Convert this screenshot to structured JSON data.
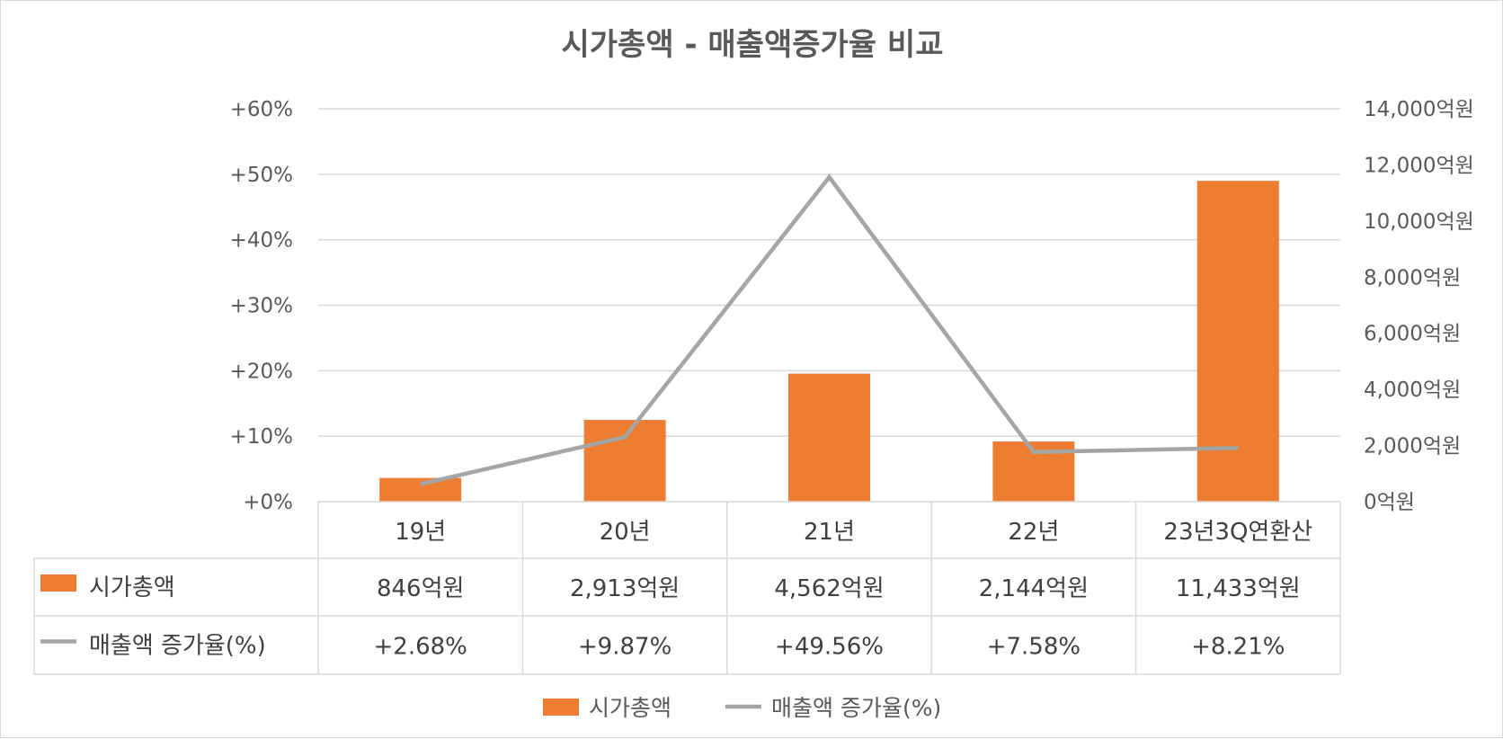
{
  "chart_data": {
    "type": "bar",
    "title": "시가총액 - 매출액증가율 비교",
    "categories": [
      "19년",
      "20년",
      "21년",
      "22년",
      "23년3Q연환산"
    ],
    "series": [
      {
        "name": "시가총액",
        "type": "bar",
        "axis": "right",
        "unit": "억원",
        "values": [
          846,
          2913,
          4562,
          2144,
          11433
        ],
        "value_labels": [
          "846억원",
          "2,913억원",
          "4,562억원",
          "2,144억원",
          "11,433억원"
        ],
        "color": "#ED7D31"
      },
      {
        "name": "매출액 증가율(%)",
        "type": "line",
        "axis": "left",
        "unit": "%",
        "values": [
          2.68,
          9.87,
          49.56,
          7.58,
          8.21
        ],
        "value_labels": [
          "+2.68%",
          "+9.87%",
          "+49.56%",
          "+7.58%",
          "+8.21%"
        ],
        "color": "#A5A5A5"
      }
    ],
    "y_left": {
      "range": [
        0,
        60
      ],
      "ticks": [
        "+0%",
        "+10%",
        "+20%",
        "+30%",
        "+40%",
        "+50%",
        "+60%"
      ]
    },
    "y_right": {
      "range": [
        0,
        14000
      ],
      "ticks": [
        "0억원",
        "2,000억원",
        "4,000억원",
        "6,000억원",
        "8,000억원",
        "10,000억원",
        "12,000억원",
        "14,000억원"
      ]
    },
    "grid": true,
    "data_table": true,
    "legend": {
      "position": "bottom",
      "items": [
        "시가총액",
        "매출액 증가율(%)"
      ]
    },
    "colors": {
      "bar": "#ED7D31",
      "line": "#A5A5A5",
      "grid": "#d9d9d9",
      "text": "#595959"
    }
  }
}
